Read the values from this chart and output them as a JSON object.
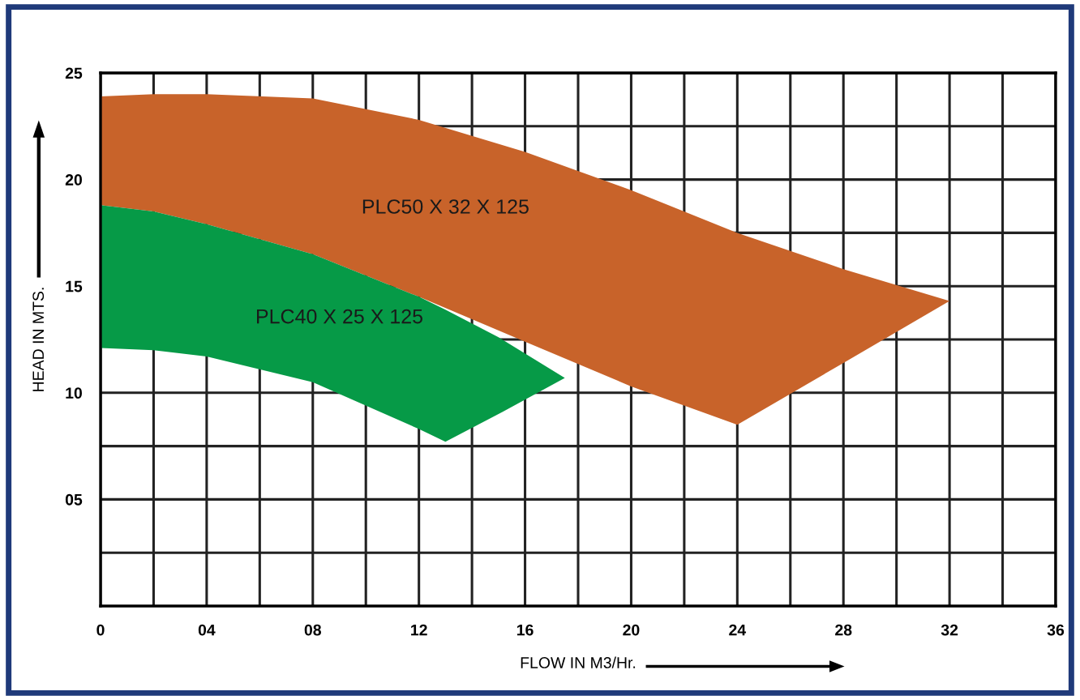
{
  "chart_data": {
    "type": "area",
    "xlabel": "FLOW IN M3/Hr.",
    "ylabel": "HEAD IN MTS.",
    "xlim": [
      0,
      36
    ],
    "ylim": [
      0,
      25
    ],
    "xticks": [
      0,
      {
        "value": 2,
        "label": null
      },
      {
        "value": 4,
        "label": "04"
      },
      {
        "value": 6,
        "label": null
      },
      {
        "value": 8,
        "label": "08"
      },
      {
        "value": 10,
        "label": null
      },
      12,
      {
        "value": 14,
        "label": null
      },
      16,
      {
        "value": 18,
        "label": null
      },
      20,
      {
        "value": 22,
        "label": null
      },
      24,
      {
        "value": 26,
        "label": null
      },
      28,
      {
        "value": 30,
        "label": null
      },
      32,
      {
        "value": 34,
        "label": null
      },
      36
    ],
    "yticks": [
      {
        "value": 2.5,
        "label": null
      },
      {
        "value": 5,
        "label": "05"
      },
      {
        "value": 7.5,
        "label": null
      },
      10,
      {
        "value": 12.5,
        "label": null
      },
      15,
      {
        "value": 17.5,
        "label": null
      },
      20,
      {
        "value": 22.5,
        "label": null
      },
      25
    ],
    "grid": true,
    "series": [
      {
        "name": "PLC50 X 32 X 125",
        "color": "#c8632a",
        "x": [
          0,
          2,
          4,
          8,
          12,
          16,
          20,
          24,
          28,
          32,
          28,
          24,
          20,
          16,
          12,
          8,
          4,
          2,
          0
        ],
        "values": [
          23.9,
          24.0,
          24.0,
          23.8,
          22.8,
          21.3,
          19.5,
          17.5,
          15.8,
          14.3,
          11.4,
          8.5,
          10.3,
          12.4,
          14.5,
          16.5,
          17.9,
          18.5,
          18.8
        ]
      },
      {
        "name": "PLC40 X 25 X 125",
        "color": "#069a47",
        "x": [
          0,
          2,
          4,
          8,
          12,
          13,
          15,
          17.5,
          15,
          13,
          12,
          8,
          4,
          2,
          0
        ],
        "values": [
          18.8,
          18.5,
          17.9,
          16.5,
          14.5,
          13.9,
          12.6,
          10.7,
          9.0,
          7.7,
          8.3,
          10.5,
          11.7,
          12.0,
          12.1
        ]
      }
    ]
  }
}
